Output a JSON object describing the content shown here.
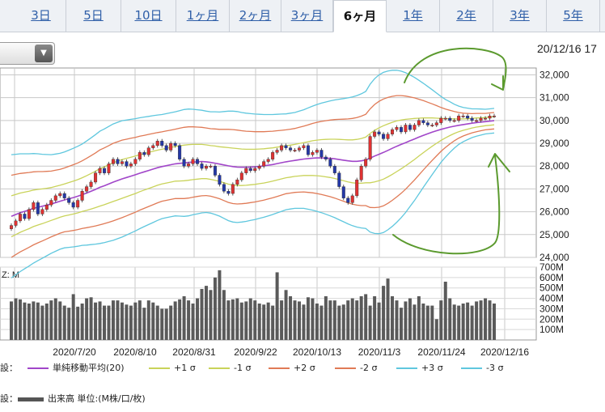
{
  "tabs": [
    {
      "label": "3日",
      "active": false
    },
    {
      "label": "5日",
      "active": false
    },
    {
      "label": "10日",
      "active": false
    },
    {
      "label": "1ヶ月",
      "active": false
    },
    {
      "label": "2ヶ月",
      "active": false
    },
    {
      "label": "3ヶ月",
      "active": false
    },
    {
      "label": "6ヶ月",
      "active": true
    },
    {
      "label": "1年",
      "active": false
    },
    {
      "label": "2年",
      "active": false
    },
    {
      "label": "3年",
      "active": false
    },
    {
      "label": "5年",
      "active": false
    }
  ],
  "header": {
    "date": "20/12/16 17"
  },
  "legend": {
    "price_prefix": "設：",
    "volume_prefix": "設：",
    "items": [
      {
        "label": "単純移動平均(20)",
        "color": "#a146c9"
      },
      {
        "label": "+1 σ",
        "color": "#c9d35a"
      },
      {
        "label": "-1 σ",
        "color": "#c9d35a"
      },
      {
        "label": "+2 σ",
        "color": "#e07a56"
      },
      {
        "label": "-2 σ",
        "color": "#e07a56"
      },
      {
        "label": "+3 σ",
        "color": "#5fc7de"
      },
      {
        "label": "-3 σ",
        "color": "#5fc7de"
      }
    ],
    "volume_label": "出来高 単位:(M株/口/枚)",
    "volume_color": "#555555"
  },
  "chart_data": {
    "type": "candlestick",
    "y_ticks": [
      "32,000",
      "31,000",
      "30,000",
      "29,000",
      "28,000",
      "27,000",
      "26,000",
      "25,000",
      "24,000"
    ],
    "ylim": [
      24000,
      32300
    ],
    "x_labels": [
      "2020/7/20",
      "2020/8/10",
      "2020/8/31",
      "2020/9/22",
      "2020/10/13",
      "2020/11/3",
      "2020/11/24",
      "2020/12/16"
    ],
    "volume_y_ticks": [
      "700M",
      "600M",
      "500M",
      "400M",
      "300M",
      "200M",
      "100M"
    ],
    "volume_ylim": [
      0,
      700
    ],
    "volume_axis_label": "Z: M",
    "close": [
      25400,
      25600,
      25900,
      25700,
      26100,
      26400,
      25900,
      26100,
      26300,
      26500,
      26700,
      26800,
      26600,
      26400,
      26200,
      26500,
      26900,
      27100,
      27300,
      27700,
      27900,
      27700,
      28100,
      28300,
      28100,
      28200,
      28000,
      28100,
      28300,
      28600,
      28500,
      28800,
      28900,
      29100,
      28900,
      28700,
      29000,
      28900,
      28300,
      28000,
      28100,
      28300,
      28100,
      27900,
      28000,
      28000,
      27600,
      27200,
      26900,
      26800,
      27200,
      27400,
      27700,
      27900,
      27800,
      27900,
      28000,
      28200,
      28300,
      28600,
      28700,
      28900,
      28800,
      28700,
      28700,
      28800,
      28900,
      28500,
      28600,
      28700,
      28400,
      28300,
      28000,
      27700,
      27100,
      26600,
      26400,
      26700,
      27400,
      28000,
      28300,
      29300,
      29500,
      29400,
      29200,
      29400,
      29600,
      29700,
      29500,
      29800,
      29600,
      29800,
      30000,
      29900,
      29800,
      29800,
      29900,
      30100,
      30100,
      30000,
      30000,
      30200,
      30200,
      30100,
      30000,
      30000,
      30100,
      30100,
      30200,
      30200
    ],
    "sma20": [
      25800,
      25880,
      25960,
      26020,
      26080,
      26150,
      26200,
      26240,
      26290,
      26340,
      26400,
      26460,
      26520,
      26570,
      26620,
      26680,
      26750,
      26820,
      26900,
      26980,
      27070,
      27140,
      27220,
      27300,
      27370,
      27440,
      27500,
      27560,
      27620,
      27690,
      27750,
      27810,
      27870,
      27930,
      27980,
      28020,
      28060,
      28100,
      28120,
      28140,
      28160,
      28180,
      28190,
      28200,
      28190,
      28160,
      28130,
      28090,
      28050,
      28010,
      27980,
      27960,
      27950,
      27950,
      27960,
      27970,
      27990,
      28010,
      28040,
      28070,
      28110,
      28150,
      28190,
      28220,
      28250,
      28280,
      28310,
      28330,
      28350,
      28360,
      28360,
      28350,
      28340,
      28320,
      28290,
      28260,
      28230,
      28210,
      28210,
      28230,
      28270,
      28350,
      28440,
      28520,
      28600,
      28690,
      28780,
      28870,
      28950,
      29030,
      29110,
      29190,
      29270,
      29350,
      29420,
      29490,
      29550,
      29610,
      29660,
      29710,
      29750,
      29790,
      29820,
      29850,
      29880,
      29910,
      29930,
      29950,
      29970,
      29990
    ],
    "sigma": [
      900,
      880,
      860,
      840,
      820,
      800,
      780,
      760,
      740,
      720,
      710,
      700,
      700,
      710,
      720,
      730,
      740,
      760,
      780,
      800,
      820,
      830,
      840,
      850,
      850,
      850,
      840,
      830,
      820,
      810,
      800,
      790,
      780,
      770,
      760,
      760,
      760,
      760,
      770,
      780,
      780,
      770,
      760,
      750,
      740,
      740,
      750,
      760,
      780,
      800,
      810,
      810,
      800,
      790,
      780,
      770,
      760,
      750,
      740,
      730,
      720,
      710,
      700,
      700,
      700,
      710,
      720,
      740,
      760,
      780,
      800,
      820,
      840,
      860,
      880,
      900,
      920,
      940,
      960,
      980,
      1000,
      1080,
      1130,
      1160,
      1170,
      1160,
      1140,
      1110,
      1070,
      1020,
      960,
      900,
      830,
      760,
      690,
      620,
      550,
      480,
      420,
      370,
      320,
      280,
      250,
      230,
      210,
      200,
      190,
      180,
      180,
      180
    ],
    "volume": [
      370,
      400,
      390,
      360,
      350,
      370,
      360,
      330,
      350,
      380,
      400,
      370,
      330,
      310,
      440,
      320,
      350,
      400,
      410,
      360,
      370,
      330,
      330,
      380,
      380,
      360,
      340,
      330,
      360,
      380,
      310,
      380,
      360,
      330,
      300,
      300,
      330,
      370,
      390,
      420,
      380,
      350,
      400,
      490,
      520,
      480,
      600,
      670,
      480,
      380,
      390,
      400,
      360,
      370,
      400,
      380,
      350,
      340,
      360,
      330,
      650,
      380,
      480,
      420,
      380,
      370,
      340,
      410,
      400,
      350,
      330,
      420,
      380,
      380,
      330,
      340,
      380,
      400,
      380,
      420,
      440,
      330,
      420,
      360,
      520,
      590,
      420,
      380,
      310,
      370,
      400,
      340,
      420,
      350,
      330,
      330,
      200,
      380,
      560,
      400,
      340,
      330,
      350,
      360,
      330,
      370,
      380,
      400,
      380,
      350
    ]
  }
}
